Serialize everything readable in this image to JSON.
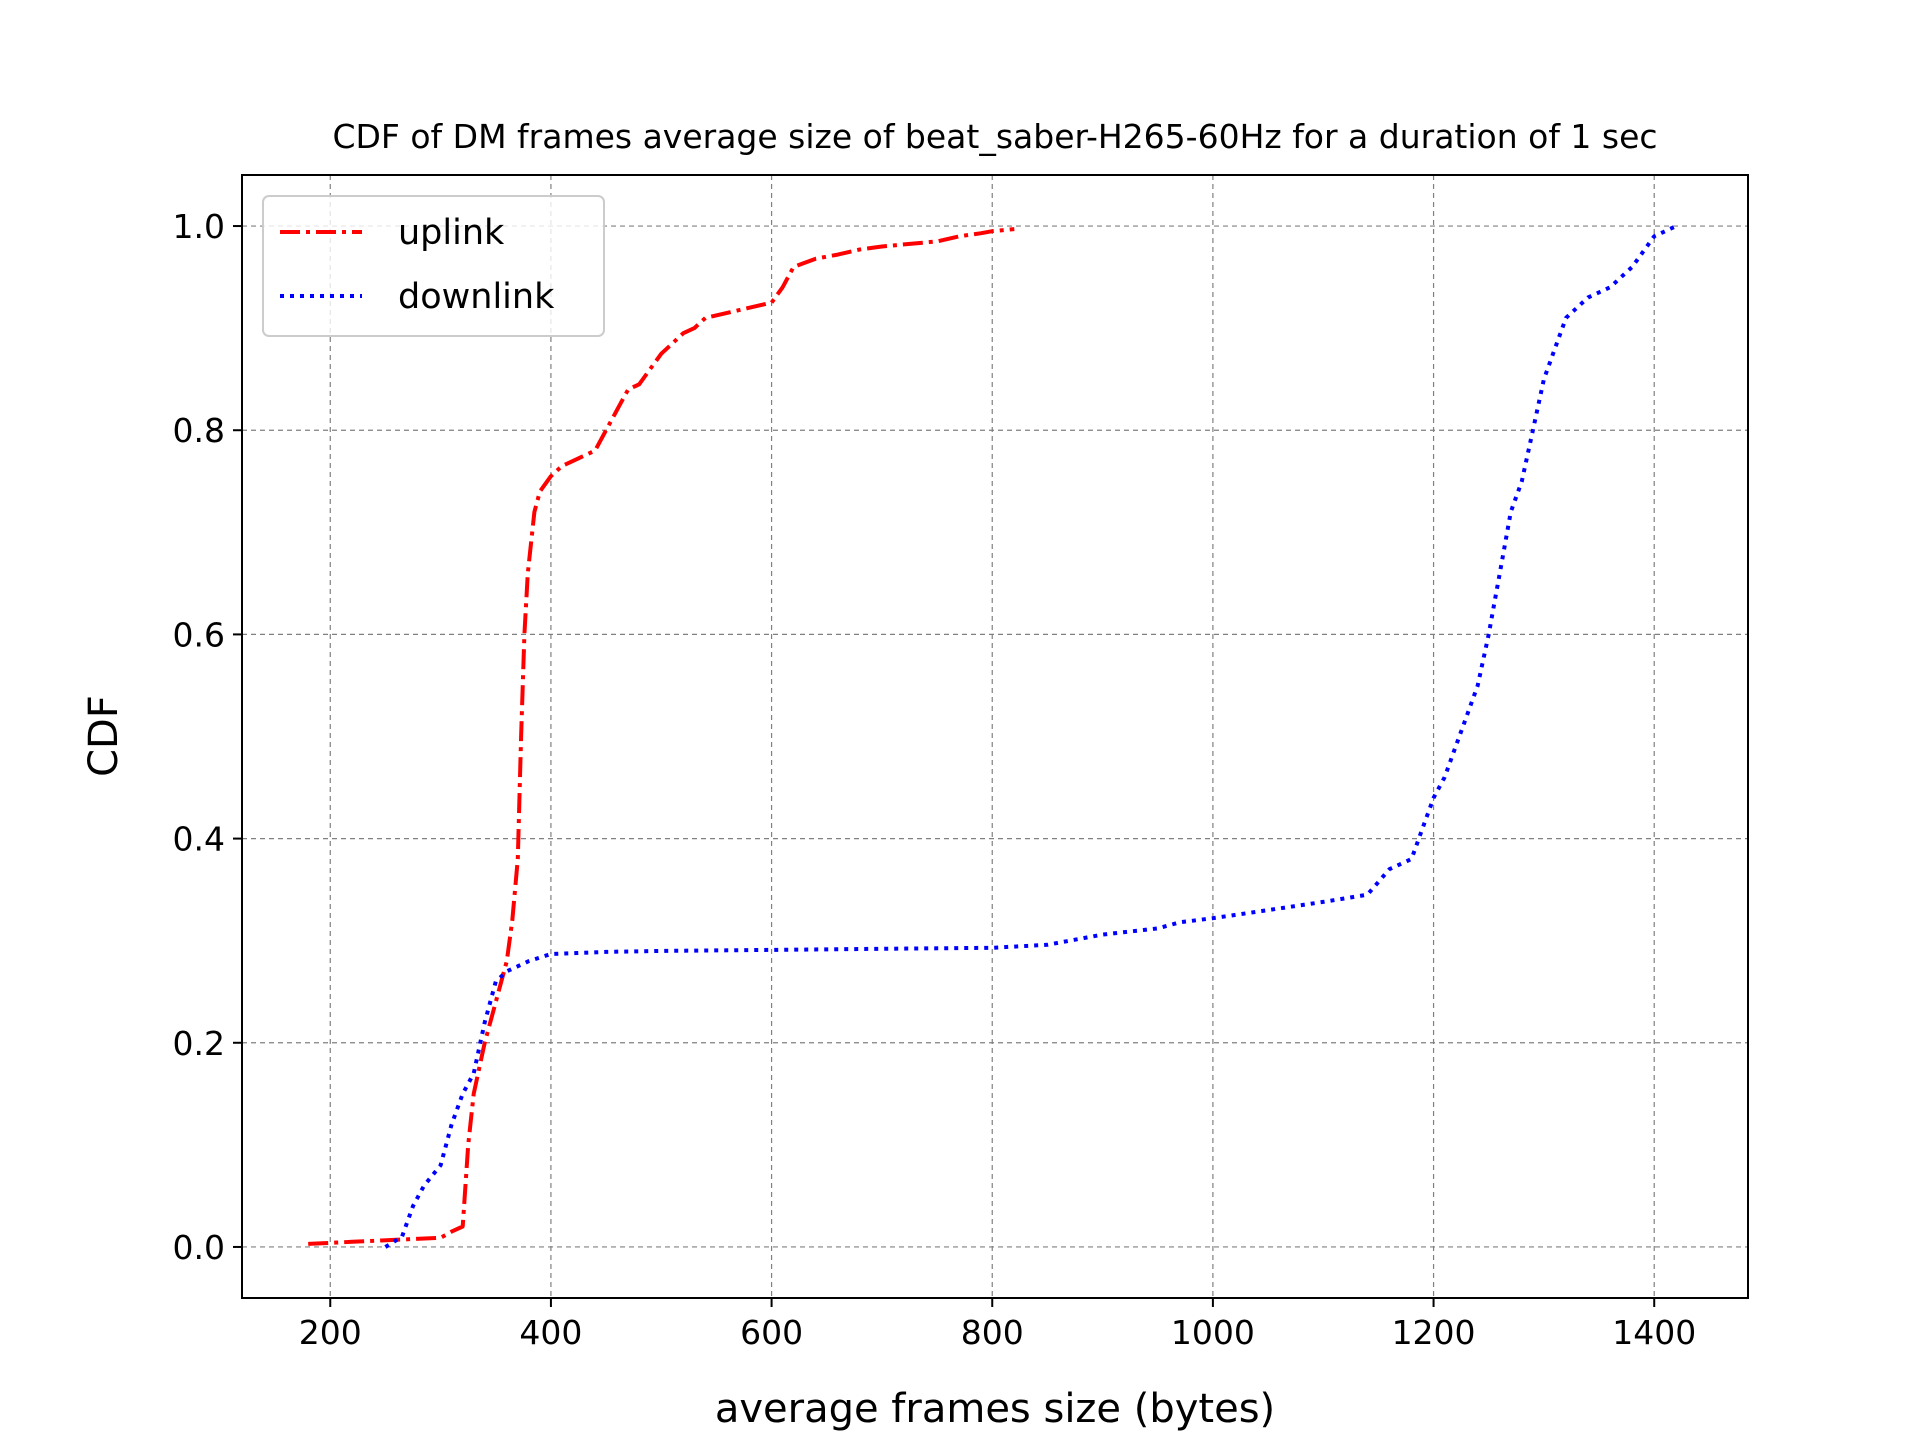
{
  "chart_data": {
    "type": "line",
    "title": "CDF of DM frames average size of beat_saber-H265-60Hz for a duration of 1 sec",
    "xlabel": "average frames size (bytes)",
    "ylabel": "CDF",
    "xlim": [
      120,
      1485
    ],
    "ylim": [
      -0.05,
      1.05
    ],
    "xticks": [
      200,
      400,
      600,
      800,
      1000,
      1200,
      1400
    ],
    "yticks": [
      0.0,
      0.2,
      0.4,
      0.6,
      0.8,
      1.0
    ],
    "xtick_labels": [
      "200",
      "400",
      "600",
      "800",
      "1000",
      "1200",
      "1400"
    ],
    "ytick_labels": [
      "0.0",
      "0.2",
      "0.4",
      "0.6",
      "0.8",
      "1.0"
    ],
    "grid": true,
    "legend_position": "top-left",
    "series": [
      {
        "name": "uplink",
        "color": "#ff0000",
        "style": "dashdot",
        "x": [
          180,
          220,
          260,
          300,
          310,
          320,
          325,
          330,
          340,
          350,
          360,
          365,
          370,
          373,
          376,
          379,
          382,
          385,
          390,
          400,
          410,
          420,
          440,
          450,
          460,
          470,
          480,
          490,
          500,
          510,
          520,
          530,
          540,
          560,
          580,
          600,
          610,
          620,
          640,
          660,
          680,
          700,
          720,
          750,
          770,
          790,
          800,
          820
        ],
        "y": [
          0.003,
          0.005,
          0.007,
          0.009,
          0.015,
          0.02,
          0.1,
          0.15,
          0.2,
          0.24,
          0.28,
          0.32,
          0.38,
          0.5,
          0.6,
          0.66,
          0.69,
          0.72,
          0.74,
          0.755,
          0.765,
          0.77,
          0.78,
          0.8,
          0.82,
          0.84,
          0.845,
          0.86,
          0.875,
          0.885,
          0.895,
          0.9,
          0.91,
          0.915,
          0.92,
          0.925,
          0.94,
          0.96,
          0.968,
          0.972,
          0.977,
          0.98,
          0.982,
          0.985,
          0.99,
          0.993,
          0.995,
          0.997
        ],
        "values": [
          0.003,
          0.005,
          0.007,
          0.009,
          0.015,
          0.02,
          0.1,
          0.15,
          0.2,
          0.24,
          0.28,
          0.32,
          0.38,
          0.5,
          0.6,
          0.66,
          0.69,
          0.72,
          0.74,
          0.755,
          0.765,
          0.77,
          0.78,
          0.8,
          0.82,
          0.84,
          0.845,
          0.86,
          0.875,
          0.885,
          0.895,
          0.9,
          0.91,
          0.915,
          0.92,
          0.925,
          0.94,
          0.96,
          0.968,
          0.972,
          0.977,
          0.98,
          0.982,
          0.985,
          0.99,
          0.993,
          0.995,
          0.997
        ]
      },
      {
        "name": "downlink",
        "color": "#0000ff",
        "style": "dotted",
        "x": [
          250,
          265,
          275,
          285,
          300,
          310,
          320,
          330,
          340,
          350,
          360,
          380,
          400,
          450,
          500,
          600,
          700,
          800,
          850,
          900,
          950,
          970,
          1000,
          1050,
          1100,
          1140,
          1160,
          1180,
          1190,
          1200,
          1210,
          1220,
          1230,
          1240,
          1250,
          1255,
          1260,
          1270,
          1280,
          1290,
          1300,
          1310,
          1320,
          1330,
          1340,
          1360,
          1380,
          1400,
          1420
        ],
        "y": [
          0.0,
          0.01,
          0.04,
          0.06,
          0.08,
          0.12,
          0.15,
          0.17,
          0.22,
          0.26,
          0.27,
          0.28,
          0.287,
          0.289,
          0.29,
          0.291,
          0.292,
          0.293,
          0.296,
          0.306,
          0.312,
          0.318,
          0.322,
          0.33,
          0.338,
          0.345,
          0.37,
          0.38,
          0.41,
          0.44,
          0.46,
          0.49,
          0.52,
          0.55,
          0.6,
          0.63,
          0.66,
          0.72,
          0.75,
          0.8,
          0.85,
          0.88,
          0.91,
          0.92,
          0.93,
          0.94,
          0.96,
          0.99,
          1.0
        ],
        "values": [
          0.0,
          0.01,
          0.04,
          0.06,
          0.08,
          0.12,
          0.15,
          0.17,
          0.22,
          0.26,
          0.27,
          0.28,
          0.287,
          0.289,
          0.29,
          0.291,
          0.292,
          0.293,
          0.296,
          0.306,
          0.312,
          0.318,
          0.322,
          0.33,
          0.338,
          0.345,
          0.37,
          0.38,
          0.41,
          0.44,
          0.46,
          0.49,
          0.52,
          0.55,
          0.6,
          0.63,
          0.66,
          0.72,
          0.75,
          0.8,
          0.85,
          0.88,
          0.91,
          0.92,
          0.93,
          0.94,
          0.96,
          0.99,
          1.0
        ]
      }
    ]
  }
}
